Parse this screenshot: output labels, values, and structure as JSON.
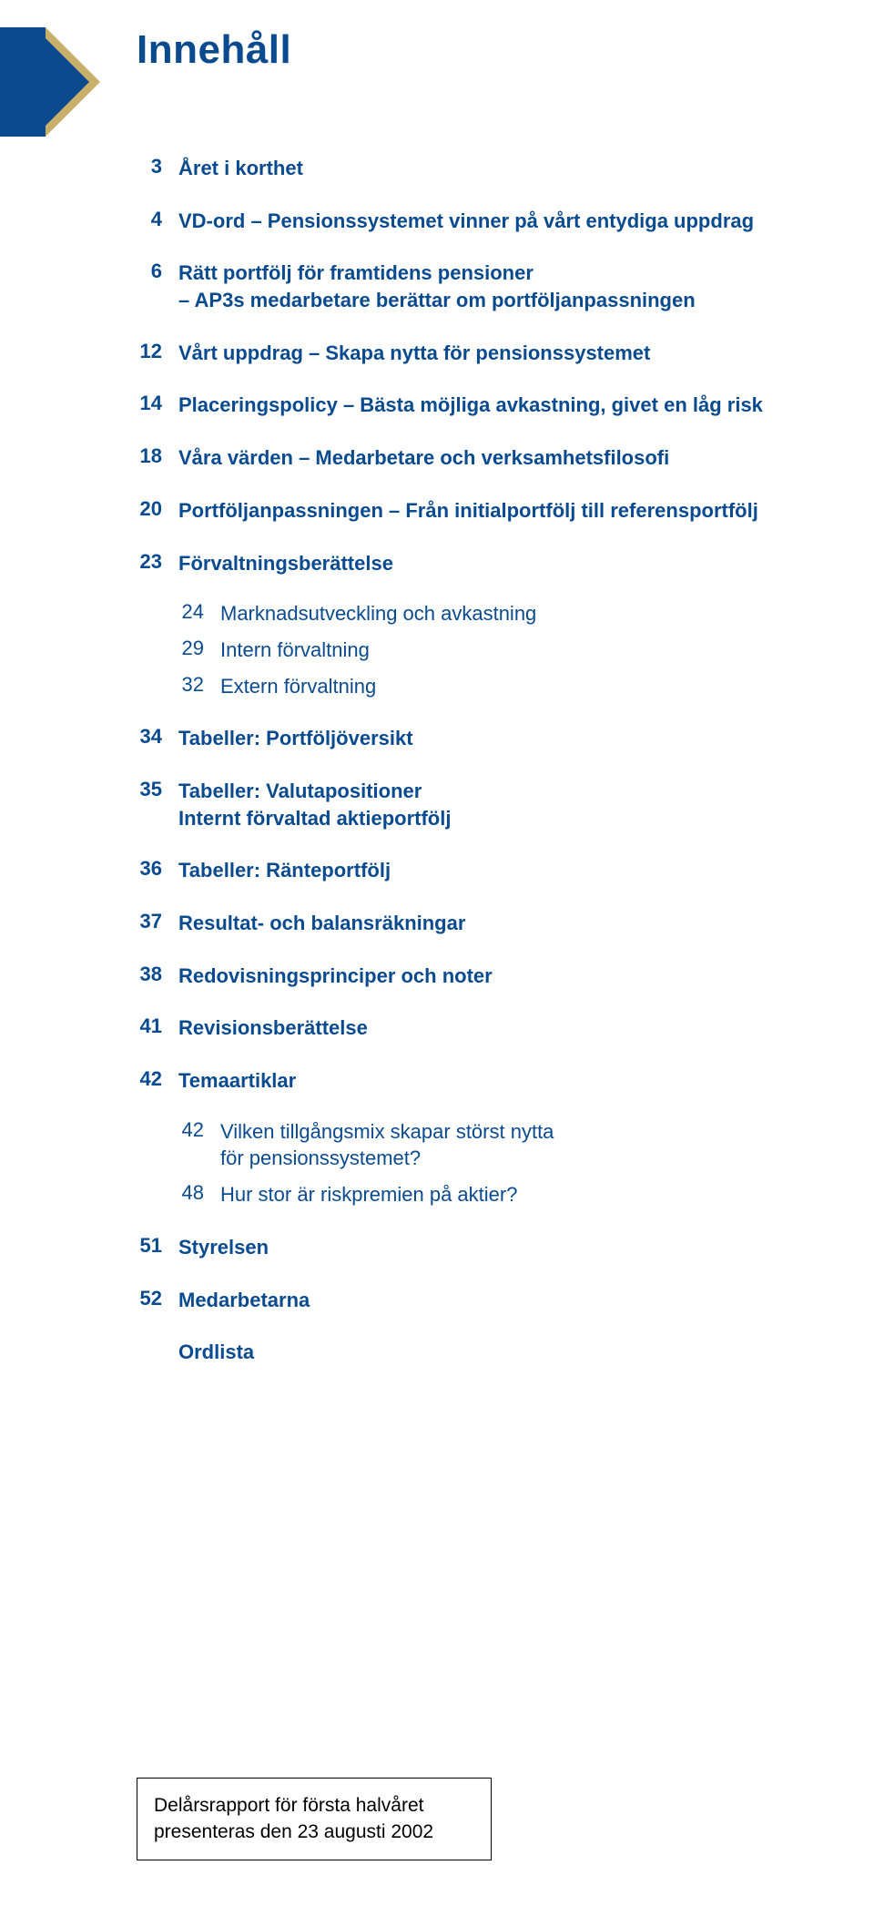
{
  "colors": {
    "accent": "#0a4a8f",
    "gold": "#c9b06a",
    "background": "#ffffff",
    "text": "#000000"
  },
  "title": "Innehåll",
  "toc": [
    {
      "num": "3",
      "label": "Året i korthet"
    },
    {
      "num": "4",
      "label": "VD-ord – Pensionssystemet vinner på vårt entydiga uppdrag"
    },
    {
      "num": "6",
      "label": "Rätt portfölj för framtidens pensioner",
      "sub": "– AP3s medarbetare berättar om portföljanpassningen"
    },
    {
      "num": "12",
      "label": "Vårt uppdrag – Skapa nytta för pensionssystemet"
    },
    {
      "num": "14",
      "label": "Placeringspolicy – Bästa möjliga avkastning, givet en låg risk"
    },
    {
      "num": "18",
      "label": "Våra värden – Medarbetare och verksamhetsfilosofi"
    },
    {
      "num": "20",
      "label": "Portföljanpassningen – Från initialportfölj till referensportfölj"
    },
    {
      "num": "23",
      "label": "Förvaltningsberättelse",
      "children": [
        {
          "num": "24",
          "label": "Marknadsutveckling och avkastning"
        },
        {
          "num": "29",
          "label": "Intern förvaltning"
        },
        {
          "num": "32",
          "label": "Extern förvaltning"
        }
      ]
    },
    {
      "num": "34",
      "label": "Tabeller: Portföljöversikt"
    },
    {
      "num": "35",
      "label": "Tabeller: Valutapositioner",
      "sub": "Internt förvaltad aktieportfölj"
    },
    {
      "num": "36",
      "label": "Tabeller: Ränteportfölj"
    },
    {
      "num": "37",
      "label": "Resultat- och balansräkningar"
    },
    {
      "num": "38",
      "label": "Redovisningsprinciper och noter"
    },
    {
      "num": "41",
      "label": "Revisionsberättelse"
    },
    {
      "num": "42",
      "label": "Temaartiklar",
      "children": [
        {
          "num": "42",
          "label": "Vilken tillgångsmix skapar störst nytta",
          "sub": "för pensionssystemet?"
        },
        {
          "num": "48",
          "label": "Hur stor är riskpremien på aktier?"
        }
      ]
    },
    {
      "num": "51",
      "label": "Styrelsen"
    },
    {
      "num": "52",
      "label": "Medarbetarna"
    },
    {
      "num": "",
      "label": "Ordlista"
    }
  ],
  "note": {
    "line1": "Delårsrapport för första halvåret",
    "line2": "presenteras den 23 augusti 2002"
  }
}
